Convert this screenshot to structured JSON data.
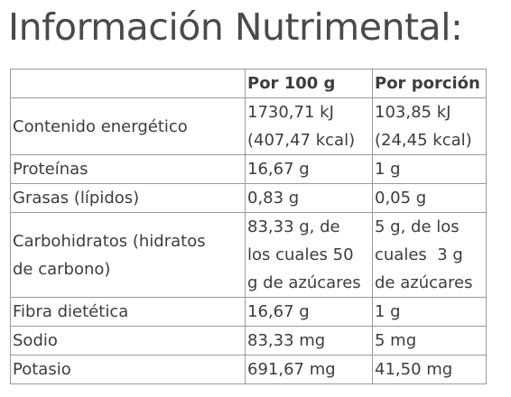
{
  "title": "Información Nutrimental:",
  "table": {
    "headers": [
      "",
      "Por 100 g",
      "Por porción"
    ],
    "rows": [
      {
        "label_lines": [
          "Contenido energético"
        ],
        "per100_lines": [
          "1730,71 kJ",
          "(407,47 kcal)"
        ],
        "portion_lines": [
          "103,85 kJ",
          "(24,45 kcal)"
        ]
      },
      {
        "label_lines": [
          "Proteínas"
        ],
        "per100_lines": [
          "16,67 g"
        ],
        "portion_lines": [
          "1 g"
        ]
      },
      {
        "label_lines": [
          "Grasas (lípidos)"
        ],
        "per100_lines": [
          "0,83 g"
        ],
        "portion_lines": [
          "0,05 g"
        ]
      },
      {
        "label_lines": [
          "Carbohidratos (hidratos",
          "de carbono)"
        ],
        "per100_lines": [
          "83,33 g, de",
          "los cuales 50",
          "g de azúcares"
        ],
        "portion_lines": [
          "5 g, de los",
          "cuales  3 g",
          "de azúcares"
        ]
      },
      {
        "label_lines": [
          "Fibra dietética"
        ],
        "per100_lines": [
          "16,67 g"
        ],
        "portion_lines": [
          "1 g"
        ]
      },
      {
        "label_lines": [
          "Sodio"
        ],
        "per100_lines": [
          "83,33 mg"
        ],
        "portion_lines": [
          "5 mg"
        ]
      },
      {
        "label_lines": [
          "Potasio"
        ],
        "per100_lines": [
          "691,67 mg"
        ],
        "portion_lines": [
          "41,50 mg"
        ]
      }
    ]
  }
}
